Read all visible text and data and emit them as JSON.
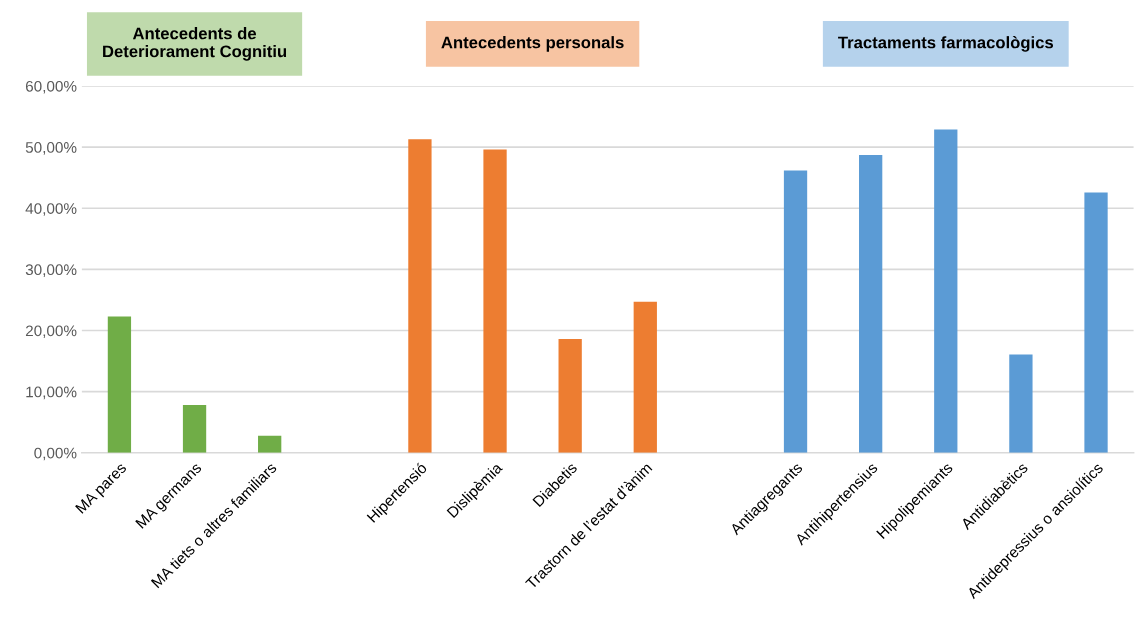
{
  "chart_data": {
    "type": "bar",
    "categories": [
      "MA pares",
      "MA germans",
      "MA tiets o altres familiars",
      null,
      "Hipertensió",
      "Dislipèmia",
      "Diabetis",
      "Trastorn de l’estat d’ànim",
      null,
      "Antiagregants",
      "Antihipertensius",
      "Hipolipemiants",
      "Antidiabètics",
      "Antidepressius o ansiolítics"
    ],
    "series": [
      {
        "color": "#70ad47",
        "values": [
          22.3,
          7.8,
          2.8,
          null,
          null,
          null,
          null,
          null,
          null,
          null,
          null,
          null,
          null,
          null
        ]
      },
      {
        "color": "#ed7d31",
        "values": [
          null,
          null,
          null,
          null,
          51.3,
          49.6,
          18.6,
          24.7,
          null,
          null,
          null,
          null,
          null,
          null
        ]
      },
      {
        "color": "#5b9bd5",
        "values": [
          null,
          null,
          null,
          null,
          null,
          null,
          null,
          null,
          null,
          46.2,
          48.7,
          52.9,
          16.1,
          42.6
        ]
      }
    ],
    "ylim": [
      0,
      60
    ],
    "yticks": [
      {
        "value": 0,
        "label": "0,00%"
      },
      {
        "value": 10,
        "label": "10,00%"
      },
      {
        "value": 20,
        "label": "20,00%"
      },
      {
        "value": 30,
        "label": "30,00%"
      },
      {
        "value": 40,
        "label": "40,00%"
      },
      {
        "value": 50,
        "label": "50,00%"
      },
      {
        "value": 60,
        "label": "60,00%"
      }
    ],
    "annotations": [
      "Antecedents de\nDeteriorament Cognitiu",
      "Antecedents personals",
      "Tractaments farmacològics"
    ],
    "grid": "y",
    "legend": false
  }
}
